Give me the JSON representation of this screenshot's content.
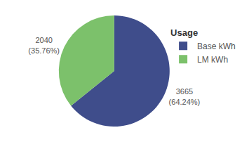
{
  "chart_data": {
    "type": "pie",
    "legend_title": "Usage",
    "categories": [
      "Base kWh",
      "LM kWh"
    ],
    "values": [
      3665,
      2040
    ],
    "value_labels": [
      "3665\n(64.24%)",
      "2040\n(35.76%)"
    ],
    "colors": [
      "#3f4d8b",
      "#7cc16b"
    ],
    "data_labels": true,
    "legend": "right"
  }
}
